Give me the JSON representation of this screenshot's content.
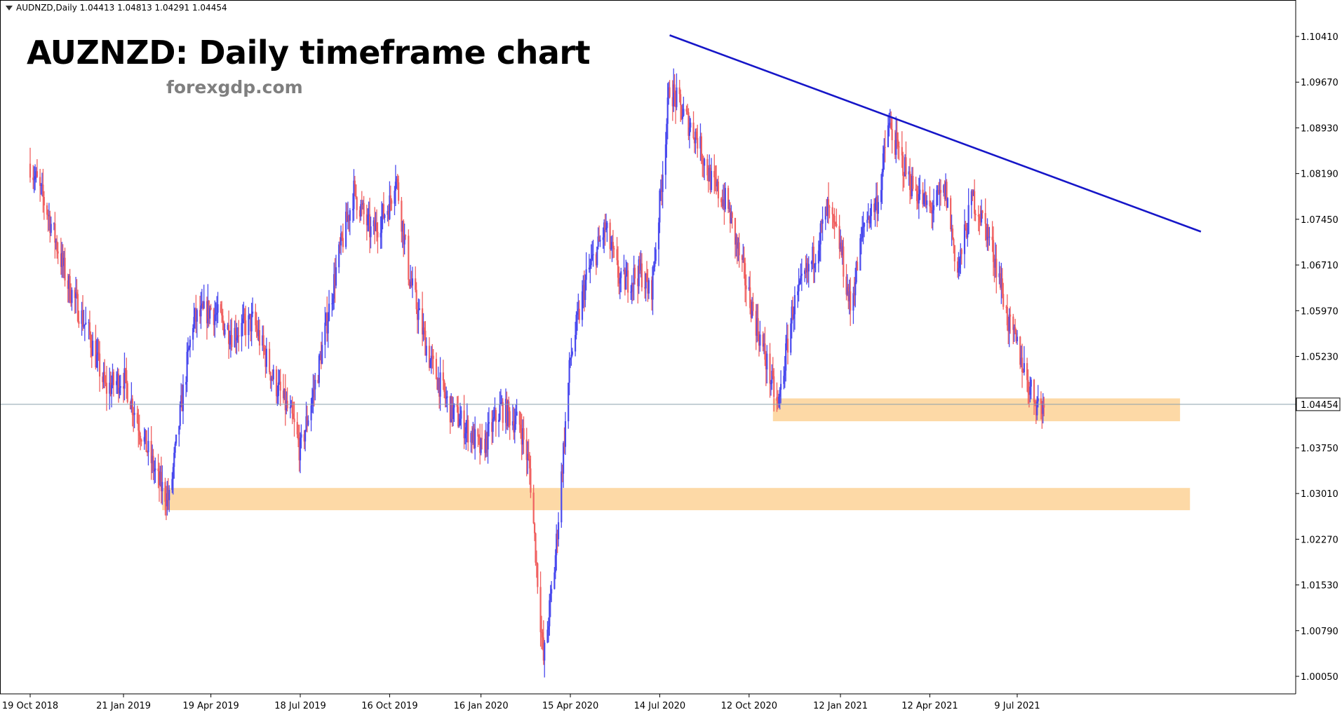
{
  "header": {
    "symbol_line": "AUDNZD,Daily  1.04413 1.04813 1.04291 1.04454"
  },
  "title": "AUZNZD: Daily timeframe chart",
  "watermark": "forexgdp.com",
  "colors": {
    "bull": "#4a4aee",
    "bear": "#f06060",
    "zone": "#fdd9a6",
    "trendline": "#1616c8",
    "price_line": "#8aa0ad",
    "axis": "#000000"
  },
  "chart_data": {
    "type": "candlestick",
    "symbol": "AUDNZD",
    "timeframe": "Daily",
    "last_bar": {
      "open": 1.04413,
      "high": 1.04813,
      "low": 1.04291,
      "close": 1.04454
    },
    "ylim": [
      0.999,
      1.1075
    ],
    "y_ticks": [
      "1.10410",
      "1.09670",
      "1.08930",
      "1.08190",
      "1.07450",
      "1.06710",
      "1.05970",
      "1.05230",
      "1.04454",
      "1.03750",
      "1.03010",
      "1.02270",
      "1.01530",
      "1.00790",
      "1.00050"
    ],
    "current_price": "1.04454",
    "x_ticks": [
      "19 Oct 2018",
      "21 Jan 2019",
      "19 Apr 2019",
      "18 Jul 2019",
      "16 Oct 2019",
      "16 Jan 2020",
      "15 Apr 2020",
      "14 Jul 2020",
      "12 Oct 2020",
      "12 Jan 2021",
      "12 Apr 2021",
      "9 Jul 2021"
    ],
    "price_path": [
      {
        "date": "2018-10-19",
        "price": 1.0835
      },
      {
        "date": "2018-11-05",
        "price": 1.076
      },
      {
        "date": "2018-11-26",
        "price": 1.064
      },
      {
        "date": "2018-12-17",
        "price": 1.056
      },
      {
        "date": "2019-01-03",
        "price": 1.047
      },
      {
        "date": "2019-01-21",
        "price": 1.049
      },
      {
        "date": "2019-02-08",
        "price": 1.04
      },
      {
        "date": "2019-02-25",
        "price": 1.032
      },
      {
        "date": "2019-03-08",
        "price": 1.029
      },
      {
        "date": "2019-03-20",
        "price": 1.044
      },
      {
        "date": "2019-04-01",
        "price": 1.058
      },
      {
        "date": "2019-04-19",
        "price": 1.06
      },
      {
        "date": "2019-05-10",
        "price": 1.056
      },
      {
        "date": "2019-06-01",
        "price": 1.058
      },
      {
        "date": "2019-06-20",
        "price": 1.049
      },
      {
        "date": "2019-07-10",
        "price": 1.042
      },
      {
        "date": "2019-07-18",
        "price": 1.037
      },
      {
        "date": "2019-08-05",
        "price": 1.05
      },
      {
        "date": "2019-08-25",
        "price": 1.068
      },
      {
        "date": "2019-09-10",
        "price": 1.079
      },
      {
        "date": "2019-09-28",
        "price": 1.072
      },
      {
        "date": "2019-10-16",
        "price": 1.077
      },
      {
        "date": "2019-10-22",
        "price": 1.082
      },
      {
        "date": "2019-11-05",
        "price": 1.065
      },
      {
        "date": "2019-11-25",
        "price": 1.052
      },
      {
        "date": "2019-12-15",
        "price": 1.044
      },
      {
        "date": "2020-01-05",
        "price": 1.04
      },
      {
        "date": "2020-01-16",
        "price": 1.037
      },
      {
        "date": "2020-02-05",
        "price": 1.044
      },
      {
        "date": "2020-02-25",
        "price": 1.041
      },
      {
        "date": "2020-03-05",
        "price": 1.034
      },
      {
        "date": "2020-03-19",
        "price": 1.003
      },
      {
        "date": "2020-03-30",
        "price": 1.018
      },
      {
        "date": "2020-04-15",
        "price": 1.052
      },
      {
        "date": "2020-05-01",
        "price": 1.065
      },
      {
        "date": "2020-05-20",
        "price": 1.073
      },
      {
        "date": "2020-06-05",
        "price": 1.064
      },
      {
        "date": "2020-06-25",
        "price": 1.066
      },
      {
        "date": "2020-07-05",
        "price": 1.062
      },
      {
        "date": "2020-07-14",
        "price": 1.077
      },
      {
        "date": "2020-07-24",
        "price": 1.096
      },
      {
        "date": "2020-08-05",
        "price": 1.092
      },
      {
        "date": "2020-08-20",
        "price": 1.088
      },
      {
        "date": "2020-09-05",
        "price": 1.08
      },
      {
        "date": "2020-09-20",
        "price": 1.077
      },
      {
        "date": "2020-09-30",
        "price": 1.07
      },
      {
        "date": "2020-10-12",
        "price": 1.062
      },
      {
        "date": "2020-10-30",
        "price": 1.051
      },
      {
        "date": "2020-11-10",
        "price": 1.044
      },
      {
        "date": "2020-11-25",
        "price": 1.06
      },
      {
        "date": "2020-12-15",
        "price": 1.068
      },
      {
        "date": "2020-12-30",
        "price": 1.076
      },
      {
        "date": "2021-01-12",
        "price": 1.07
      },
      {
        "date": "2021-01-22",
        "price": 1.06
      },
      {
        "date": "2021-02-05",
        "price": 1.074
      },
      {
        "date": "2021-02-20",
        "price": 1.078
      },
      {
        "date": "2021-03-01",
        "price": 1.09
      },
      {
        "date": "2021-03-12",
        "price": 1.085
      },
      {
        "date": "2021-03-25",
        "price": 1.08
      },
      {
        "date": "2021-04-12",
        "price": 1.076
      },
      {
        "date": "2021-04-28",
        "price": 1.079
      },
      {
        "date": "2021-05-10",
        "price": 1.066
      },
      {
        "date": "2021-05-25",
        "price": 1.078
      },
      {
        "date": "2021-06-08",
        "price": 1.073
      },
      {
        "date": "2021-06-20",
        "price": 1.066
      },
      {
        "date": "2021-07-01",
        "price": 1.057
      },
      {
        "date": "2021-07-09",
        "price": 1.054
      },
      {
        "date": "2021-07-20",
        "price": 1.048
      },
      {
        "date": "2021-07-28",
        "price": 1.045
      },
      {
        "date": "2021-08-05",
        "price": 1.044
      }
    ],
    "trendline": {
      "from": {
        "date": "2020-07-24",
        "price": 1.1043
      },
      "to": {
        "date": "2022-01-10",
        "price": 1.0725
      }
    },
    "zones": [
      {
        "from_date": "2019-03-01",
        "to_date": "2021-12-30",
        "top": 1.031,
        "bottom": 1.0274
      },
      {
        "from_date": "2020-11-05",
        "to_date": "2021-12-20",
        "top": 1.0455,
        "bottom": 1.0418
      }
    ]
  }
}
